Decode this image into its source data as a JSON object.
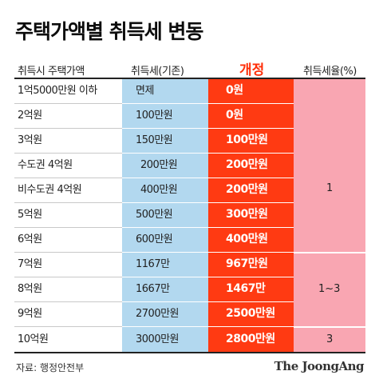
{
  "title": "주택가액별 취득세 변동",
  "headers": {
    "price": "취득시 주택가액",
    "old": "취득세(기존)",
    "new": "개정",
    "rate": "취득세율(%)"
  },
  "rows": [
    {
      "price": "1억5000만원 이하",
      "old": "면제",
      "new": "0원"
    },
    {
      "price": "2억원",
      "old": "100만원",
      "new": "0원"
    },
    {
      "price": "3억원",
      "old": "150만원",
      "new": "100만원"
    },
    {
      "price": "수도권 4억원",
      "old": "200만원",
      "new": "200만원"
    },
    {
      "price": "비수도권 4억원",
      "old": "400만원",
      "new": "200만원"
    },
    {
      "price": "5억원",
      "old": "500만원",
      "new": "300만원"
    },
    {
      "price": "6억원",
      "old": "600만원",
      "new": "400만원"
    },
    {
      "price": "7억원",
      "old": "1167만",
      "new": "967만원"
    },
    {
      "price": "8억원",
      "old": "1667만",
      "new": "1467만"
    },
    {
      "price": "9억원",
      "old": "2700만원",
      "new": "2500만원"
    },
    {
      "price": "10억원",
      "old": "3000만원",
      "new": "2800만원"
    }
  ],
  "rates": [
    {
      "label": "1",
      "rows": "1-7"
    },
    {
      "label": "1~3",
      "rows": "8-10"
    },
    {
      "label": "3",
      "rows": "11"
    }
  ],
  "source": "자료: 행정안전부",
  "brand": "The JoongAng",
  "colors": {
    "old_column": "#b2d8ef",
    "new_column": "#ff3a12",
    "rate_column": "#f9a6b2",
    "new_header": "#ff2e08"
  }
}
